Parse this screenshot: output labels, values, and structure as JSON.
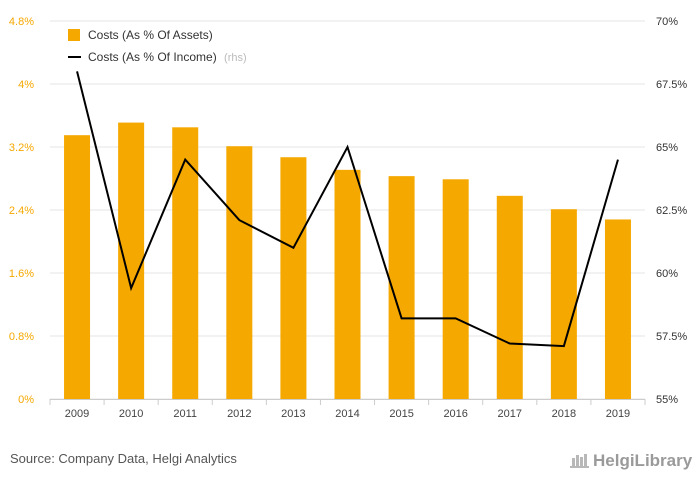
{
  "chart_data": {
    "type": "bar",
    "categories": [
      "2009",
      "2010",
      "2011",
      "2012",
      "2013",
      "2014",
      "2015",
      "2016",
      "2017",
      "2018",
      "2019"
    ],
    "series": [
      {
        "name": "Costs (As % Of Assets)",
        "type": "bar",
        "axis": "left",
        "color": "#f5a800",
        "values": [
          3.35,
          3.51,
          3.45,
          3.21,
          3.07,
          2.91,
          2.83,
          2.79,
          2.58,
          2.41,
          2.28
        ]
      },
      {
        "name": "Costs (As % Of Income)",
        "type": "line",
        "axis": "right",
        "color": "#000000",
        "values": [
          68.0,
          59.4,
          64.5,
          62.1,
          61.0,
          65.0,
          58.2,
          58.2,
          57.2,
          57.1,
          64.5
        ]
      }
    ],
    "y_left": {
      "ylim": [
        0,
        4.8
      ],
      "ticks": [
        0,
        0.8,
        1.6,
        2.4,
        3.2,
        4,
        4.8
      ],
      "tick_labels": [
        "0%",
        "0.8%",
        "1.6%",
        "2.4%",
        "3.2%",
        "4%",
        "4.8%"
      ]
    },
    "y_right": {
      "ylim": [
        55,
        70
      ],
      "ticks": [
        55,
        57.5,
        60,
        62.5,
        65,
        67.5,
        70
      ],
      "tick_labels": [
        "55%",
        "57.5%",
        "60%",
        "62.5%",
        "65%",
        "67.5%",
        "70%"
      ]
    },
    "grid": true,
    "legend": {
      "placement": "top-left",
      "items": [
        "Costs (As % Of Assets)",
        "Costs (As % Of Income)"
      ],
      "line_note": "(rhs)"
    },
    "title": "",
    "xlabel": "",
    "ylabel": ""
  },
  "footer": {
    "source": "Source: Company Data, Helgi Analytics",
    "brand": "HelgiLibrary"
  },
  "colors": {
    "bar": "#f5a800",
    "line": "#000000",
    "grid": "#e6e6e6",
    "left_axis_text": "#f5a800"
  }
}
